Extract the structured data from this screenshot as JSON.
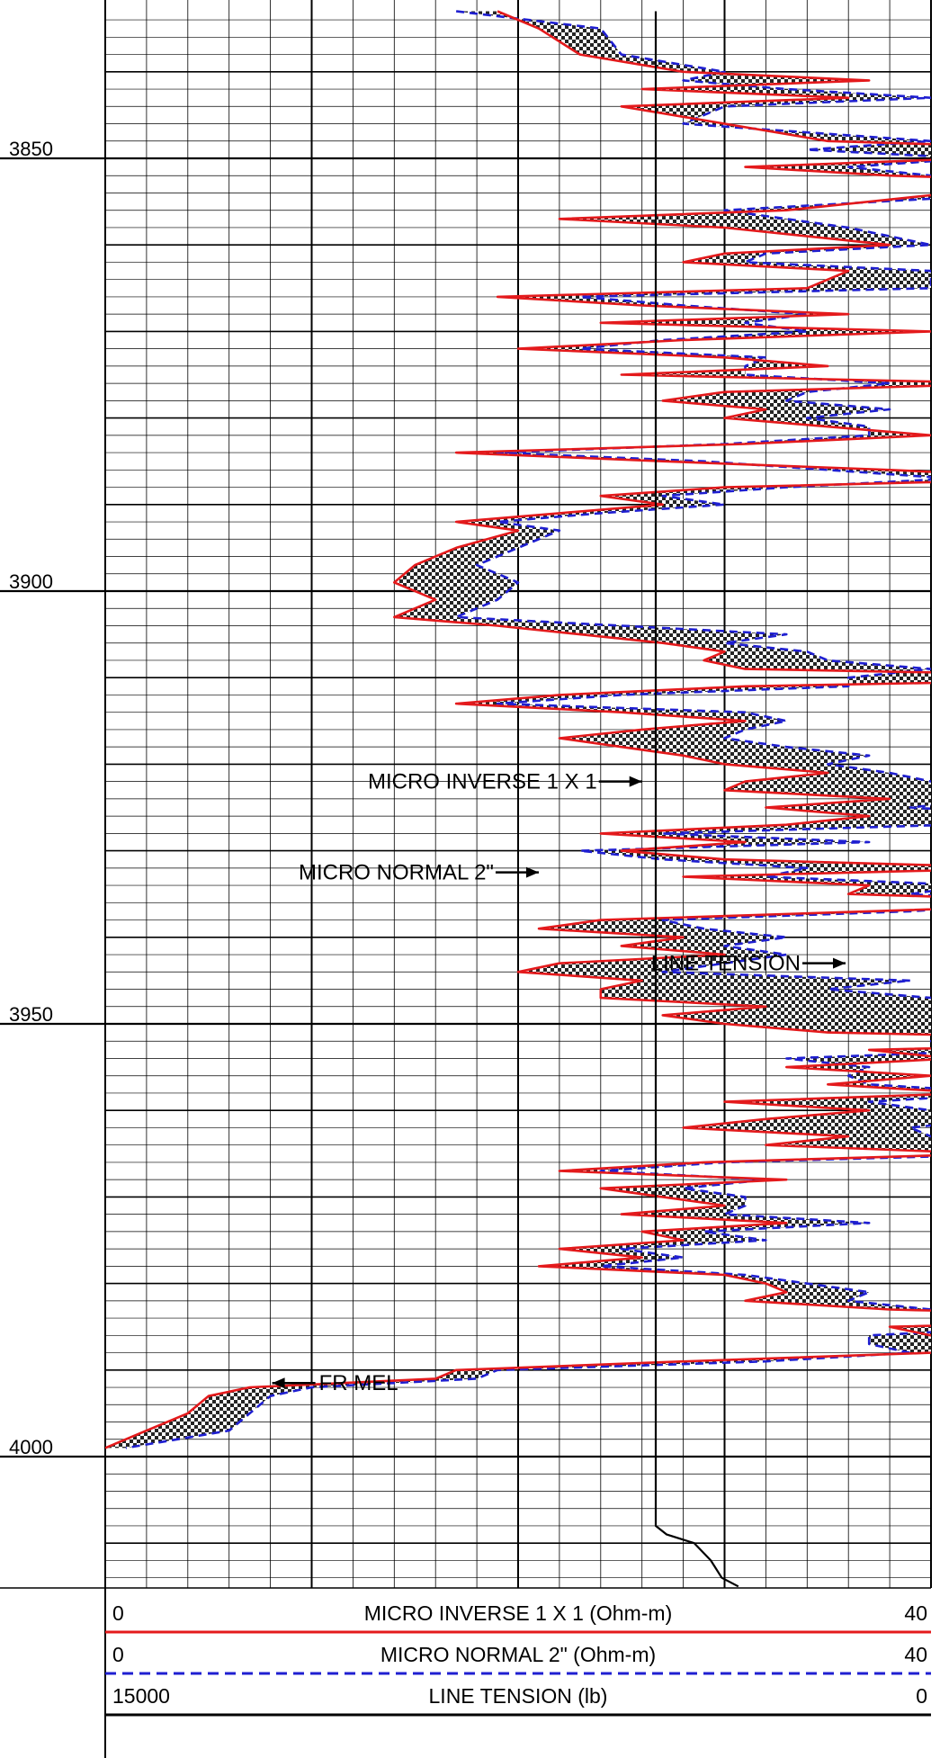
{
  "chart_data": {
    "type": "line",
    "log_kind": "well-log",
    "depth_axis": {
      "range": [
        3833,
        4015
      ],
      "tick_labels": [
        "3850",
        "3900",
        "3950",
        "4000"
      ],
      "tick_values": [
        3850,
        3900,
        3950,
        4000
      ]
    },
    "tracks": [
      {
        "name": "MICRO INVERSE 1 X 1",
        "unit": "(Ohm-m)",
        "left_scale": "0",
        "right_scale": "40",
        "color": "#e41a1c",
        "line_style": "solid"
      },
      {
        "name": "MICRO NORMAL 2\"",
        "unit": "(Ohm-m)",
        "left_scale": "0",
        "right_scale": "40",
        "color": "#1f1fd1",
        "line_style": "dashed"
      },
      {
        "name": "LINE TENSION",
        "unit": "(lb)",
        "left_scale": "15000",
        "right_scale": "0",
        "color": "#000000",
        "line_style": "solid"
      }
    ],
    "headers": [
      {
        "left": "0",
        "title": "MICRO INVERSE 1 X 1 (Ohm-m)",
        "right": "40"
      },
      {
        "left": "0",
        "title": "MICRO NORMAL 2\" (Ohm-m)",
        "right": "40"
      },
      {
        "left": "15000",
        "title": "LINE TENSION (lb)",
        "right": "0"
      }
    ],
    "annotations": [
      {
        "text": "MICRO INVERSE 1 X 1",
        "depth": 3922,
        "value": 26
      },
      {
        "text": "MICRO NORMAL 2\"",
        "depth": 3932.5,
        "value": 21
      },
      {
        "text": "LINE TENSION",
        "depth": 3943,
        "value": 720
      },
      {
        "text": "FR MEL",
        "depth": 3991.5,
        "value": 8
      }
    ],
    "series": [
      {
        "name": "MICRO INVERSE 1 X 1",
        "points": [
          [
            3833,
            19
          ],
          [
            3835,
            21
          ],
          [
            3838,
            23
          ],
          [
            3840,
            28
          ],
          [
            3841,
            37
          ],
          [
            3842,
            26
          ],
          [
            3843,
            36
          ],
          [
            3844,
            25
          ],
          [
            3846,
            30
          ],
          [
            3848,
            35
          ],
          [
            3849,
            49
          ],
          [
            3850,
            42
          ],
          [
            3851,
            31
          ],
          [
            3852,
            38
          ],
          [
            3853,
            52
          ],
          [
            3854,
            41
          ],
          [
            3856,
            33
          ],
          [
            3857,
            22
          ],
          [
            3858,
            30
          ],
          [
            3860,
            38
          ],
          [
            3861,
            30
          ],
          [
            3862,
            28
          ],
          [
            3863,
            36
          ],
          [
            3865,
            34
          ],
          [
            3866,
            19
          ],
          [
            3867,
            26
          ],
          [
            3868,
            36
          ],
          [
            3869,
            24
          ],
          [
            3870,
            40
          ],
          [
            3871,
            28
          ],
          [
            3872,
            20
          ],
          [
            3873,
            30
          ],
          [
            3874,
            35
          ],
          [
            3875,
            25
          ],
          [
            3876,
            44
          ],
          [
            3877,
            30
          ],
          [
            3878,
            27
          ],
          [
            3879,
            32
          ],
          [
            3880,
            30
          ],
          [
            3881,
            35
          ],
          [
            3882,
            40
          ],
          [
            3883,
            31
          ],
          [
            3884,
            17
          ],
          [
            3885,
            27
          ],
          [
            3886,
            38
          ],
          [
            3887,
            47
          ],
          [
            3888,
            30
          ],
          [
            3889,
            24
          ],
          [
            3890,
            27
          ],
          [
            3891,
            22
          ],
          [
            3892,
            17
          ],
          [
            3893,
            20
          ],
          [
            3895,
            17
          ],
          [
            3897,
            15
          ],
          [
            3899,
            14
          ],
          [
            3901,
            16
          ],
          [
            3903,
            14
          ],
          [
            3904,
            19
          ],
          [
            3905,
            23
          ],
          [
            3906,
            27
          ],
          [
            3907,
            30
          ],
          [
            3908,
            29
          ],
          [
            3909,
            31
          ],
          [
            3910,
            54
          ],
          [
            3911,
            31
          ],
          [
            3912,
            22
          ],
          [
            3913,
            17
          ],
          [
            3914,
            25
          ],
          [
            3915,
            31
          ],
          [
            3916,
            26
          ],
          [
            3917,
            22
          ],
          [
            3918,
            25
          ],
          [
            3919,
            28
          ],
          [
            3920,
            30
          ],
          [
            3921,
            35
          ],
          [
            3922,
            31
          ],
          [
            3923,
            30
          ],
          [
            3924,
            38
          ],
          [
            3925,
            32
          ],
          [
            3926,
            37
          ],
          [
            3927,
            33
          ],
          [
            3928,
            24
          ],
          [
            3929,
            31
          ],
          [
            3930,
            25
          ],
          [
            3931,
            30
          ],
          [
            3932,
            45
          ],
          [
            3933,
            28
          ],
          [
            3934,
            37
          ],
          [
            3935,
            36
          ],
          [
            3936,
            50
          ],
          [
            3937,
            37
          ],
          [
            3938,
            24
          ],
          [
            3939,
            21
          ],
          [
            3940,
            28
          ],
          [
            3941,
            25
          ],
          [
            3942,
            30
          ],
          [
            3943,
            22
          ],
          [
            3944,
            20
          ],
          [
            3945,
            26
          ],
          [
            3946,
            24
          ],
          [
            3947,
            24
          ],
          [
            3948,
            32
          ],
          [
            3949,
            27
          ],
          [
            3950,
            30
          ],
          [
            3951,
            35
          ],
          [
            3952,
            55
          ],
          [
            3953,
            37
          ],
          [
            3954,
            41
          ],
          [
            3955,
            33
          ],
          [
            3956,
            40
          ],
          [
            3957,
            35
          ],
          [
            3958,
            42
          ],
          [
            3959,
            30
          ],
          [
            3960,
            37
          ],
          [
            3961,
            32
          ],
          [
            3962,
            28
          ],
          [
            3963,
            36
          ],
          [
            3964,
            32
          ],
          [
            3965,
            43
          ],
          [
            3966,
            29
          ],
          [
            3967,
            22
          ],
          [
            3968,
            33
          ],
          [
            3969,
            24
          ],
          [
            3970,
            27
          ],
          [
            3971,
            30
          ],
          [
            3972,
            25
          ],
          [
            3973,
            33
          ],
          [
            3974,
            26
          ],
          [
            3975,
            28
          ],
          [
            3976,
            22
          ],
          [
            3977,
            26
          ],
          [
            3978,
            21
          ],
          [
            3979,
            30
          ],
          [
            3980,
            32
          ],
          [
            3981,
            33
          ],
          [
            3982,
            31
          ],
          [
            3983,
            38
          ],
          [
            3984,
            55
          ],
          [
            3985,
            38
          ],
          [
            3986,
            40
          ],
          [
            3987,
            46
          ],
          [
            3988,
            40
          ],
          [
            3989,
            28
          ],
          [
            3990,
            17
          ],
          [
            3991,
            16
          ],
          [
            3992,
            7
          ],
          [
            3993,
            5
          ],
          [
            3995,
            4
          ],
          [
            3997,
            2
          ],
          [
            3999,
            0
          ]
        ]
      },
      {
        "name": "MICRO NORMAL 2\"",
        "points": [
          [
            3833,
            17
          ],
          [
            3835,
            24
          ],
          [
            3838,
            25
          ],
          [
            3840,
            30
          ],
          [
            3841,
            28
          ],
          [
            3842,
            33
          ],
          [
            3843,
            40
          ],
          [
            3844,
            30
          ],
          [
            3846,
            28
          ],
          [
            3848,
            40
          ],
          [
            3849,
            34
          ],
          [
            3850,
            42
          ],
          [
            3851,
            36
          ],
          [
            3852,
            40
          ],
          [
            3853,
            48
          ],
          [
            3854,
            45
          ],
          [
            3856,
            30
          ],
          [
            3857,
            33
          ],
          [
            3858,
            36
          ],
          [
            3860,
            40
          ],
          [
            3861,
            32
          ],
          [
            3862,
            31
          ],
          [
            3863,
            40
          ],
          [
            3865,
            40
          ],
          [
            3866,
            23
          ],
          [
            3867,
            28
          ],
          [
            3868,
            34
          ],
          [
            3869,
            31
          ],
          [
            3870,
            34
          ],
          [
            3871,
            27
          ],
          [
            3872,
            23
          ],
          [
            3873,
            32
          ],
          [
            3874,
            31
          ],
          [
            3875,
            31
          ],
          [
            3876,
            38
          ],
          [
            3877,
            34
          ],
          [
            3878,
            33
          ],
          [
            3879,
            38
          ],
          [
            3880,
            34
          ],
          [
            3881,
            37
          ],
          [
            3882,
            37
          ],
          [
            3883,
            30
          ],
          [
            3884,
            19
          ],
          [
            3885,
            29
          ],
          [
            3886,
            35
          ],
          [
            3887,
            41
          ],
          [
            3888,
            33
          ],
          [
            3889,
            27
          ],
          [
            3890,
            30
          ],
          [
            3891,
            24
          ],
          [
            3892,
            19
          ],
          [
            3893,
            22
          ],
          [
            3895,
            20
          ],
          [
            3897,
            18
          ],
          [
            3899,
            20
          ],
          [
            3901,
            19
          ],
          [
            3903,
            17
          ],
          [
            3904,
            25
          ],
          [
            3905,
            33
          ],
          [
            3906,
            30
          ],
          [
            3907,
            34
          ],
          [
            3908,
            35
          ],
          [
            3909,
            40
          ],
          [
            3910,
            36
          ],
          [
            3911,
            36
          ],
          [
            3912,
            25
          ],
          [
            3913,
            19
          ],
          [
            3914,
            31
          ],
          [
            3915,
            33
          ],
          [
            3916,
            31
          ],
          [
            3917,
            30
          ],
          [
            3918,
            33
          ],
          [
            3919,
            37
          ],
          [
            3920,
            35
          ],
          [
            3921,
            38
          ],
          [
            3922,
            40
          ],
          [
            3923,
            45
          ],
          [
            3924,
            43
          ],
          [
            3925,
            39
          ],
          [
            3926,
            46
          ],
          [
            3927,
            41
          ],
          [
            3928,
            27
          ],
          [
            3929,
            37
          ],
          [
            3930,
            23
          ],
          [
            3931,
            27
          ],
          [
            3932,
            34
          ],
          [
            3933,
            32
          ],
          [
            3934,
            42
          ],
          [
            3935,
            39
          ],
          [
            3936,
            45
          ],
          [
            3937,
            39
          ],
          [
            3938,
            27
          ],
          [
            3939,
            29
          ],
          [
            3940,
            33
          ],
          [
            3941,
            30
          ],
          [
            3942,
            33
          ],
          [
            3943,
            30
          ],
          [
            3944,
            27
          ],
          [
            3945,
            39
          ],
          [
            3946,
            35
          ],
          [
            3947,
            40
          ],
          [
            3948,
            45
          ],
          [
            3949,
            40
          ],
          [
            3950,
            46
          ],
          [
            3951,
            48
          ],
          [
            3952,
            40
          ],
          [
            3953,
            44
          ],
          [
            3954,
            33
          ],
          [
            3955,
            37
          ],
          [
            3956,
            36
          ],
          [
            3957,
            37
          ],
          [
            3958,
            44
          ],
          [
            3959,
            37
          ],
          [
            3960,
            40
          ],
          [
            3961,
            43
          ],
          [
            3962,
            39
          ],
          [
            3963,
            40
          ],
          [
            3964,
            43
          ],
          [
            3965,
            45
          ],
          [
            3966,
            30
          ],
          [
            3967,
            24
          ],
          [
            3968,
            32
          ],
          [
            3969,
            28
          ],
          [
            3970,
            31
          ],
          [
            3971,
            31
          ],
          [
            3972,
            30
          ],
          [
            3973,
            37
          ],
          [
            3974,
            29
          ],
          [
            3975,
            32
          ],
          [
            3976,
            25
          ],
          [
            3977,
            28
          ],
          [
            3978,
            24
          ],
          [
            3979,
            31
          ],
          [
            3980,
            34
          ],
          [
            3981,
            37
          ],
          [
            3982,
            36
          ],
          [
            3983,
            40
          ],
          [
            3984,
            50
          ],
          [
            3985,
            45
          ],
          [
            3986,
            37
          ],
          [
            3987,
            37
          ],
          [
            3988,
            39
          ],
          [
            3989,
            32
          ],
          [
            3990,
            19
          ],
          [
            3991,
            18
          ],
          [
            3992,
            10
          ],
          [
            3993,
            8
          ],
          [
            3995,
            7
          ],
          [
            3997,
            6
          ],
          [
            3999,
            1
          ]
        ]
      },
      {
        "name": "LINE TENSION",
        "points": [
          [
            3833,
            5000
          ],
          [
            3850,
            5000
          ],
          [
            3900,
            5000
          ],
          [
            3950,
            5000
          ],
          [
            4000,
            5000
          ],
          [
            4008,
            5000
          ],
          [
            4009,
            4800
          ],
          [
            4010,
            4300
          ],
          [
            4012,
            4000
          ],
          [
            4014,
            3800
          ],
          [
            4015,
            3500
          ]
        ]
      }
    ]
  }
}
